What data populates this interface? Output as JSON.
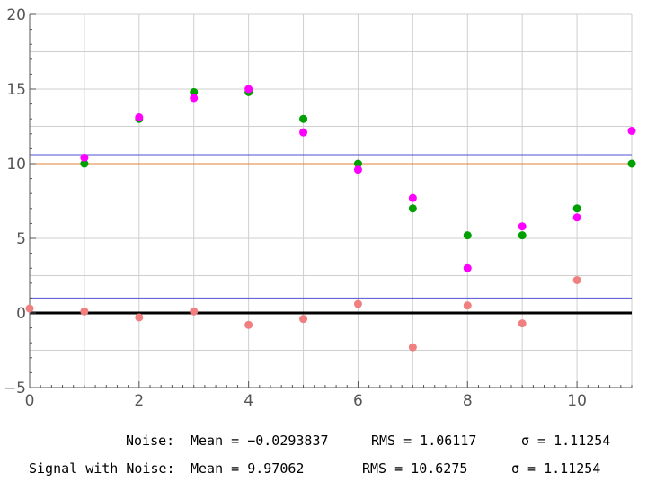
{
  "chart_data": {
    "type": "scatter",
    "xlim": [
      0,
      11
    ],
    "ylim": [
      -5,
      20
    ],
    "x_ticks": [
      0,
      2,
      4,
      6,
      8,
      10
    ],
    "y_ticks": [
      -5,
      0,
      5,
      10,
      15,
      20
    ],
    "grid": true,
    "series": [
      {
        "color": "#00a000",
        "x": [
          1,
          2,
          3,
          4,
          5,
          6,
          7,
          8,
          9,
          10,
          11
        ],
        "y": [
          10,
          13,
          14.8,
          14.8,
          13,
          10,
          7,
          5.2,
          5.2,
          7,
          10
        ]
      },
      {
        "color": "#ff00ff",
        "x": [
          1,
          2,
          3,
          4,
          5,
          6,
          7,
          8,
          9,
          10,
          11
        ],
        "y": [
          10.4,
          13.1,
          14.4,
          15,
          12.1,
          9.6,
          7.7,
          3,
          5.8,
          6.4,
          12.2
        ]
      },
      {
        "color": "#f08080",
        "x": [
          0,
          1,
          2,
          3,
          4,
          5,
          6,
          7,
          8,
          9,
          10
        ],
        "y": [
          0.3,
          0.1,
          -0.3,
          0.1,
          -0.8,
          -0.4,
          0.6,
          -2.3,
          0.5,
          -0.7,
          2.2
        ]
      }
    ],
    "reference_lines": [
      {
        "y": 0,
        "color": "#000000",
        "style": "thick"
      },
      {
        "y": 1.0,
        "color": "#5050d0",
        "style": "thin"
      },
      {
        "y": 10.0,
        "color": "#e08030",
        "style": "thin"
      },
      {
        "y": 10.6,
        "color": "#5050d0",
        "style": "thin"
      }
    ]
  },
  "stats": {
    "noise": {
      "label": "Noise:",
      "mean": "Mean = −0.0293837",
      "rms": "RMS = 1.06117",
      "sigma": "σ = 1.11254"
    },
    "signal": {
      "label": "Signal with Noise:",
      "mean": "Mean = 9.97062",
      "rms": "RMS = 10.6275",
      "sigma": "σ = 1.11254"
    }
  }
}
